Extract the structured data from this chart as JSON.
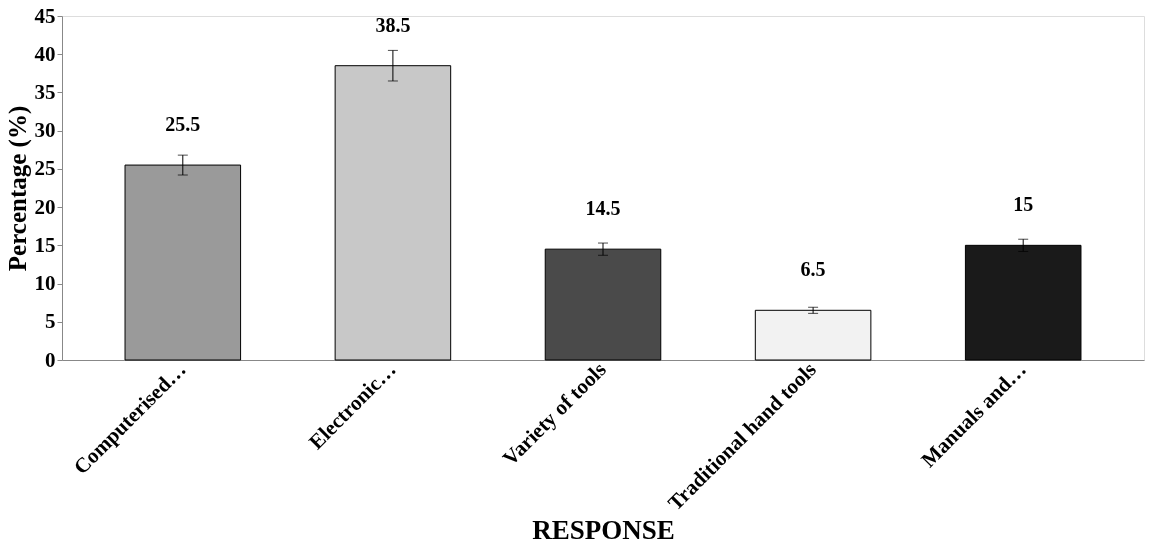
{
  "chart_data": {
    "type": "bar",
    "xlabel": "RESPONSE",
    "ylabel": "Percentage (%)",
    "categories": [
      "Computerised…",
      "Electronic…",
      "Variety of tools",
      "Traditional hand tools",
      "Manuals and…"
    ],
    "values": [
      25.5,
      38.5,
      14.5,
      6.5,
      15
    ],
    "colors": [
      "#9a9a9a",
      "#c8c8c8",
      "#4a4a4a",
      "#f2f2f2",
      "#1a1a1a"
    ],
    "errors": [
      1.3,
      2,
      0.8,
      0.4,
      0.8
    ],
    "ylim": [
      0,
      45
    ],
    "yticks": [
      0,
      5,
      10,
      15,
      20,
      25,
      30,
      35,
      40,
      45
    ],
    "data_labels": true,
    "grid": false
  }
}
